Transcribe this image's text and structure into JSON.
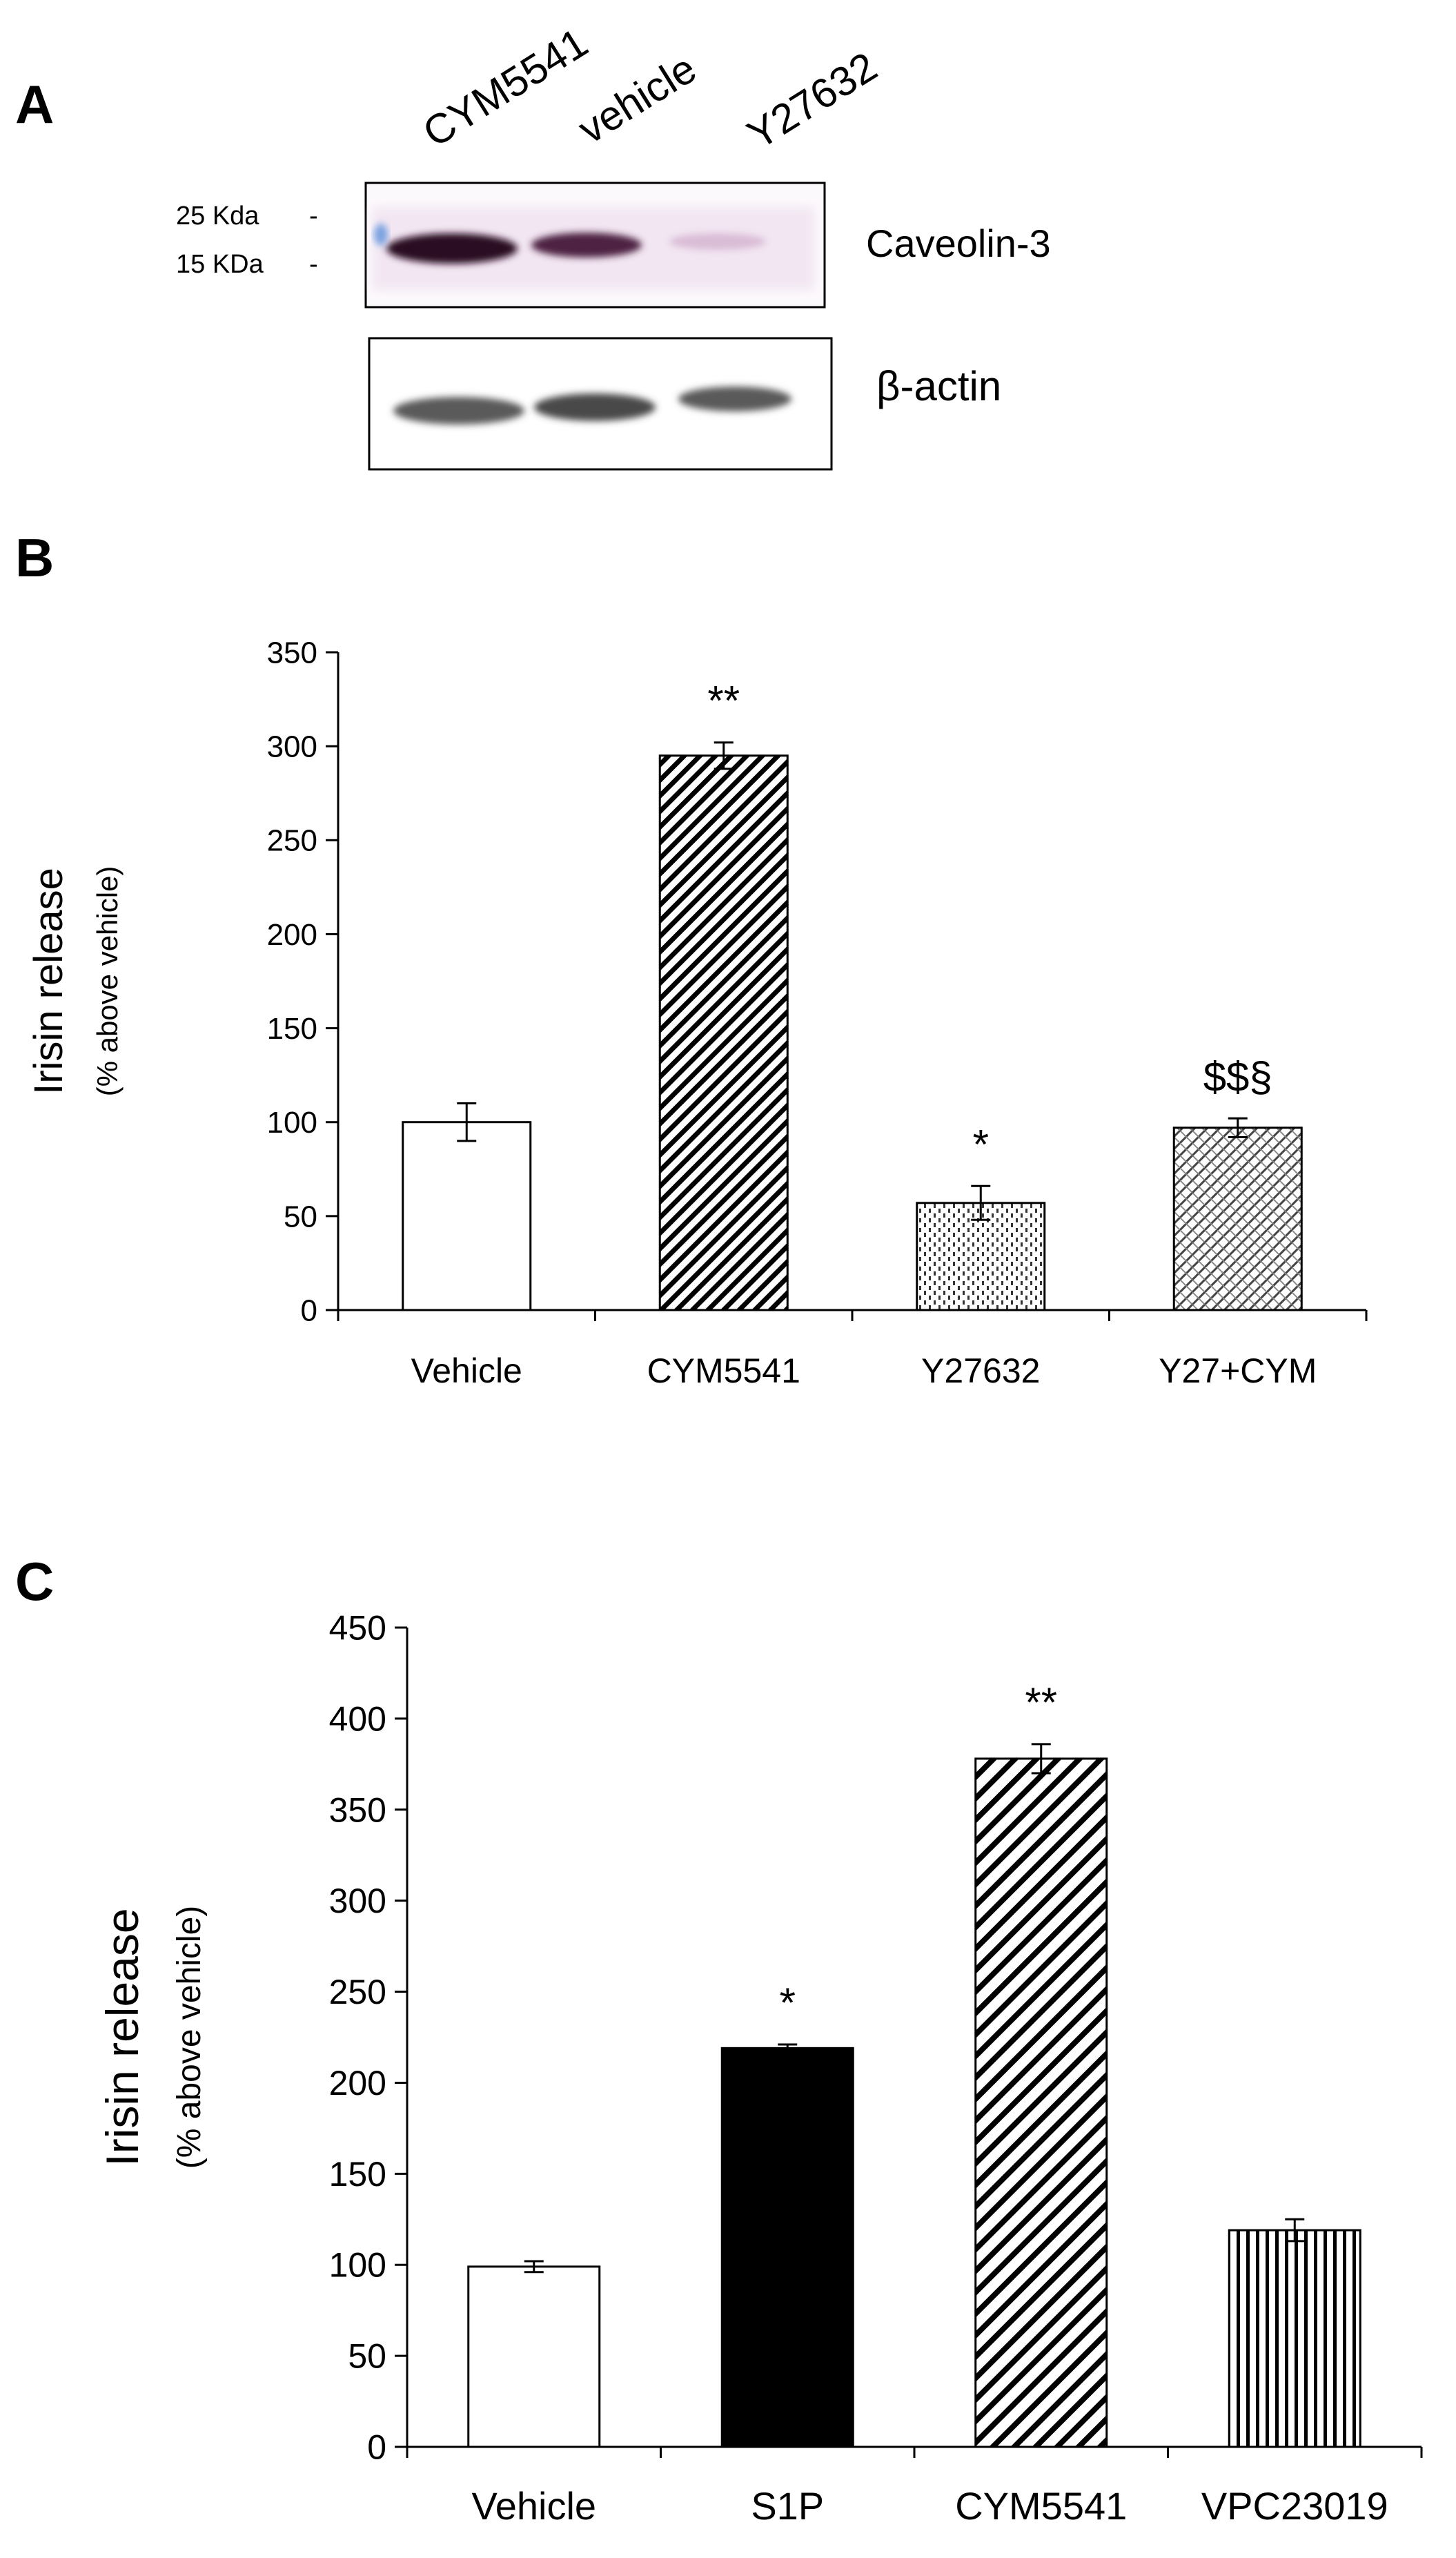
{
  "panels": {
    "a": {
      "letter": "A",
      "lanes": [
        "CYM5541",
        "vehicle",
        "Y27632"
      ],
      "markers": [
        "25 Kda",
        "15 KDa"
      ],
      "blot_labels": [
        "Caveolin-3",
        "β-actin"
      ]
    },
    "b": {
      "letter": "B"
    },
    "c": {
      "letter": "C"
    }
  },
  "chart_data": [
    {
      "type": "bar",
      "panel": "B",
      "title": "",
      "xlabel": "",
      "ylabel": "Irisin release",
      "ylabel2": "(% above vehicle)",
      "ylim": [
        0,
        350
      ],
      "yticks": [
        0,
        50,
        100,
        150,
        200,
        250,
        300,
        350
      ],
      "categories": [
        "Vehicle",
        "CYM5541",
        "Y27632",
        "Y27+CYM"
      ],
      "values": [
        100,
        295,
        57,
        97
      ],
      "errors": [
        10,
        7,
        9,
        5
      ],
      "annotations": [
        "",
        "**",
        "*",
        "$$§"
      ],
      "fills": [
        "white",
        "diag-dense",
        "dots",
        "crosshatch"
      ]
    },
    {
      "type": "bar",
      "panel": "C",
      "title": "",
      "xlabel": "",
      "ylabel": "Irisin release",
      "ylabel2": "(% above vehicle)",
      "ylim": [
        0,
        450
      ],
      "yticks": [
        0,
        50,
        100,
        150,
        200,
        250,
        300,
        350,
        400,
        450
      ],
      "categories": [
        "Vehicle",
        "S1P",
        "CYM5541",
        "VPC23019"
      ],
      "values": [
        99,
        219,
        378,
        119
      ],
      "errors": [
        3,
        2,
        8,
        6
      ],
      "annotations": [
        "",
        "*",
        "**",
        ""
      ],
      "fills": [
        "white",
        "black",
        "diag",
        "vert"
      ]
    }
  ]
}
